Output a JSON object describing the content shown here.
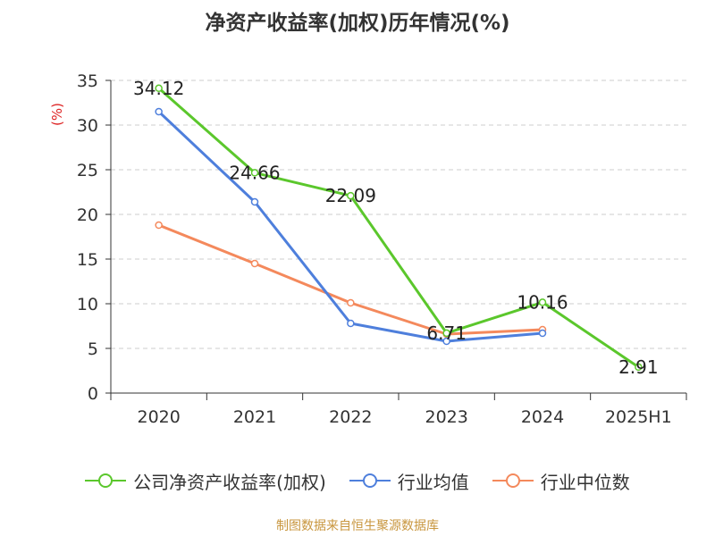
{
  "chart_data": {
    "type": "line",
    "title": "净资产收益率(加权)历年情况(%)",
    "ylabel": "(%)",
    "xlabel": "",
    "categories": [
      "2020",
      "2021",
      "2022",
      "2023",
      "2024",
      "2025H1"
    ],
    "ylim": [
      0,
      35
    ],
    "yticks": [
      0,
      5,
      10,
      15,
      20,
      25,
      30,
      35
    ],
    "grid": true,
    "legend_position": "bottom",
    "series": [
      {
        "name": "公司净资产收益率(加权)",
        "color": "#5bc72c",
        "values": [
          34.12,
          24.66,
          22.09,
          6.71,
          10.16,
          2.91
        ],
        "labels": [
          "34.12",
          "24.66",
          "22.09",
          "6.71",
          "10.16",
          "2.91"
        ]
      },
      {
        "name": "行业均值",
        "color": "#4e7fdc",
        "values": [
          31.5,
          21.4,
          7.8,
          5.8,
          6.7,
          null
        ]
      },
      {
        "name": "行业中位数",
        "color": "#f4895c",
        "values": [
          18.8,
          14.5,
          10.1,
          6.6,
          7.1,
          null
        ]
      }
    ]
  },
  "source": "制图数据来自恒生聚源数据库"
}
